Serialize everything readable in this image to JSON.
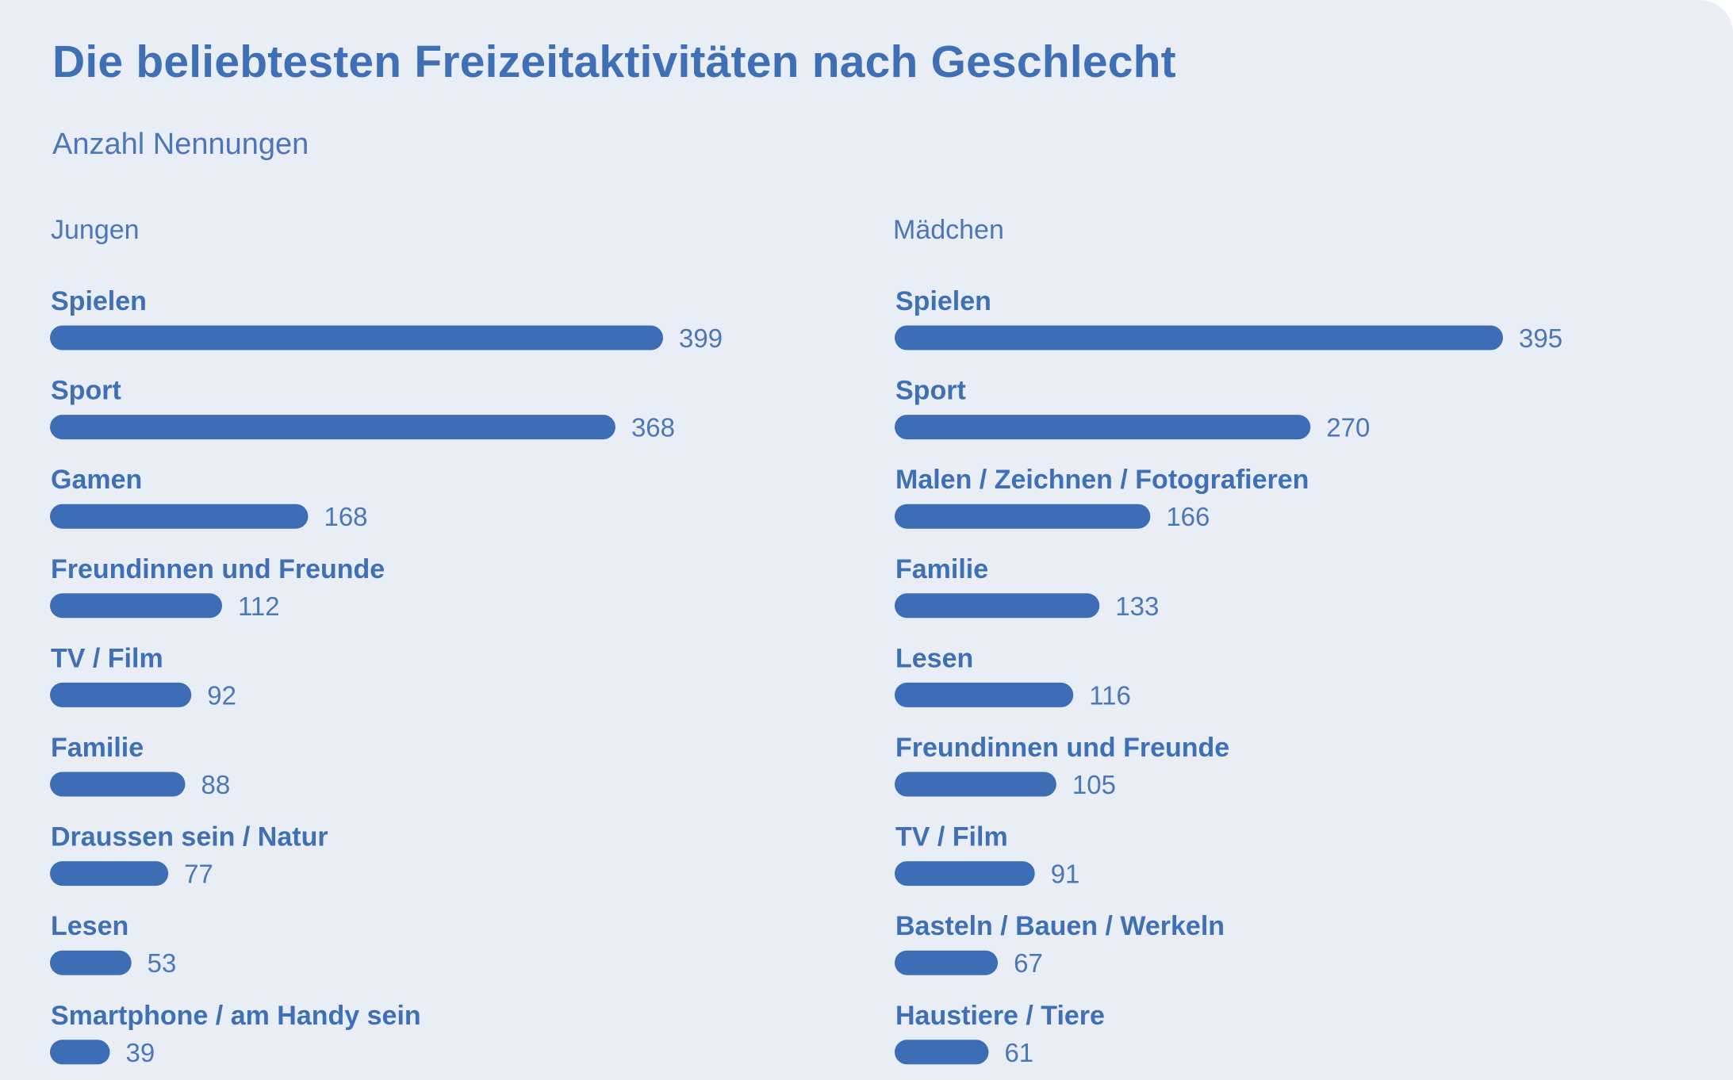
{
  "title": "Die beliebtesten Freizeitaktivitäten nach Geschlecht",
  "subtitle": "Anzahl Nennungen",
  "colors": {
    "background": "#e9edf6",
    "bar": "#3d6db5",
    "text": "#3f6fb4"
  },
  "chart_data": [
    {
      "type": "bar",
      "orientation": "horizontal",
      "title": "Jungen",
      "categories": [
        "Spielen",
        "Sport",
        "Gamen",
        "Freundinnen und Freunde",
        "TV / Film",
        "Familie",
        "Draussen sein / Natur",
        "Lesen",
        "Smartphone / am Handy sein"
      ],
      "values": [
        399,
        368,
        168,
        112,
        92,
        88,
        77,
        53,
        39
      ],
      "data_labels": true,
      "grid": false,
      "legend": "none"
    },
    {
      "type": "bar",
      "orientation": "horizontal",
      "title": "Mädchen",
      "categories": [
        "Spielen",
        "Sport",
        "Malen / Zeichnen / Fotografieren",
        "Familie",
        "Lesen",
        "Freundinnen und Freunde",
        "TV / Film",
        "Basteln / Bauen / Werkeln",
        "Haustiere / Tiere"
      ],
      "values": [
        395,
        270,
        166,
        133,
        116,
        105,
        91,
        67,
        61
      ],
      "data_labels": true,
      "grid": false,
      "legend": "none"
    }
  ]
}
